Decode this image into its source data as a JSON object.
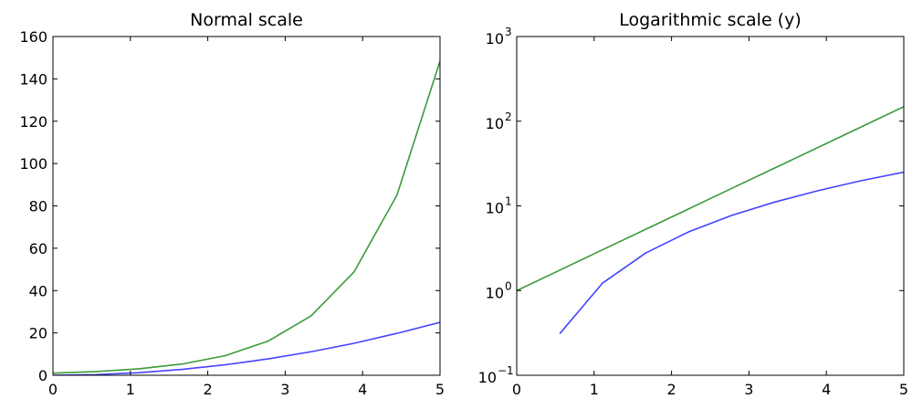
{
  "chart_data": [
    {
      "type": "line",
      "title": "Normal scale",
      "xlabel": "",
      "ylabel": "",
      "xscale": "linear",
      "yscale": "linear",
      "xlim": [
        0,
        5
      ],
      "ylim": [
        0,
        160
      ],
      "xticks": [
        0,
        1,
        2,
        3,
        4,
        5
      ],
      "xtick_labels": [
        "0",
        "1",
        "2",
        "3",
        "4",
        "5"
      ],
      "yticks": [
        0,
        20,
        40,
        60,
        80,
        100,
        120,
        140,
        160
      ],
      "ytick_labels": [
        "0",
        "20",
        "40",
        "60",
        "80",
        "100",
        "120",
        "140",
        "160"
      ],
      "grid": false,
      "legend": "none",
      "series": [
        {
          "color": "#4444ff",
          "x": [
            0,
            0.556,
            1.111,
            1.667,
            2.222,
            2.778,
            3.333,
            3.889,
            4.444,
            5.0
          ],
          "y": [
            0,
            0.31,
            1.23,
            2.78,
            4.94,
            7.72,
            11.1,
            15.1,
            19.8,
            25.0
          ]
        },
        {
          "color": "#3a9a3a",
          "x": [
            0,
            0.556,
            1.111,
            1.667,
            2.222,
            2.778,
            3.333,
            3.889,
            4.444,
            5.0
          ],
          "y": [
            1.0,
            1.74,
            3.04,
            5.29,
            9.23,
            16.1,
            28.0,
            48.8,
            85.1,
            148.4
          ]
        }
      ]
    },
    {
      "type": "line",
      "title": "Logarithmic scale (y)",
      "xlabel": "",
      "ylabel": "",
      "xscale": "linear",
      "yscale": "log",
      "xlim": [
        0,
        5
      ],
      "ylim": [
        0.1,
        1000
      ],
      "xticks": [
        0,
        1,
        2,
        3,
        4,
        5
      ],
      "xtick_labels": [
        "0",
        "1",
        "2",
        "3",
        "4",
        "5"
      ],
      "yticks": [
        0.1,
        1,
        10,
        100,
        1000
      ],
      "ytick_labels": [
        {
          "base": "10",
          "exp": "−1"
        },
        {
          "base": "10",
          "exp": "0"
        },
        {
          "base": "10",
          "exp": "1"
        },
        {
          "base": "10",
          "exp": "2"
        },
        {
          "base": "10",
          "exp": "3"
        }
      ],
      "grid": false,
      "legend": "none",
      "series": [
        {
          "color": "#4444ff",
          "x": [
            0.556,
            1.111,
            1.667,
            2.222,
            2.778,
            3.333,
            3.889,
            4.444,
            5.0
          ],
          "y": [
            0.31,
            1.23,
            2.78,
            4.94,
            7.72,
            11.1,
            15.1,
            19.8,
            25.0
          ]
        },
        {
          "color": "#3a9a3a",
          "x": [
            0,
            0.556,
            1.111,
            1.667,
            2.222,
            2.778,
            3.333,
            3.889,
            4.444,
            5.0
          ],
          "y": [
            1.0,
            1.74,
            3.04,
            5.29,
            9.23,
            16.1,
            28.0,
            48.8,
            85.1,
            148.4
          ]
        }
      ]
    }
  ]
}
